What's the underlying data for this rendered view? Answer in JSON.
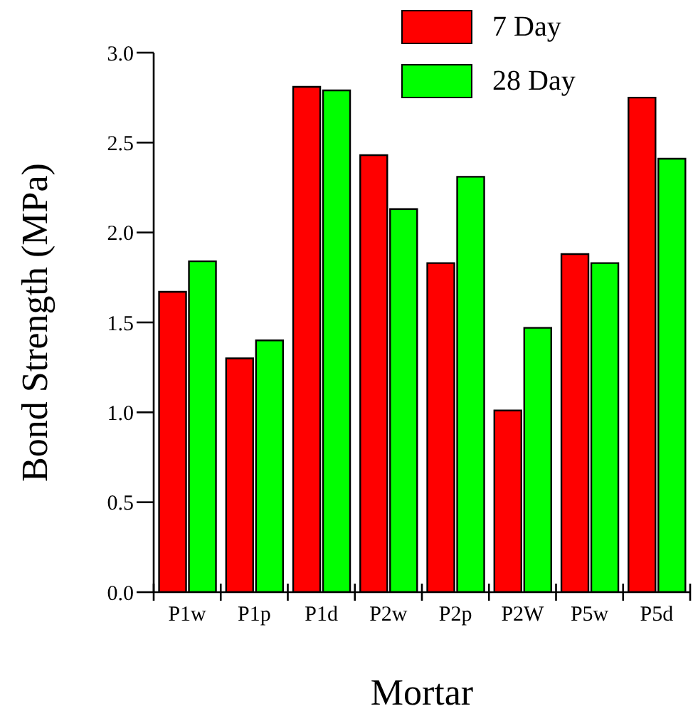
{
  "chart_data": {
    "type": "bar",
    "xlabel": "Mortar",
    "ylabel": "Bond Strength (MPa)",
    "categories": [
      "P1w",
      "P1p",
      "P1d",
      "P2w",
      "P2p",
      "P2W",
      "P5w",
      "P5d"
    ],
    "series": [
      {
        "name": "7 Day",
        "color": "#ff0000",
        "values": [
          1.67,
          1.3,
          2.81,
          2.43,
          1.83,
          1.01,
          1.88,
          2.75
        ]
      },
      {
        "name": "28 Day",
        "color": "#00ff00",
        "values": [
          1.84,
          1.4,
          2.79,
          2.13,
          2.31,
          1.47,
          1.83,
          2.41
        ]
      }
    ],
    "ylim": [
      0,
      3
    ],
    "yticks": [
      {
        "value": 0,
        "label": "0.0"
      },
      {
        "value": 0.5,
        "label": "0.5"
      },
      {
        "value": 1,
        "label": "1.0"
      },
      {
        "value": 1.5,
        "label": "1.5"
      },
      {
        "value": 2,
        "label": "2.0"
      },
      {
        "value": 2.5,
        "label": "2.5"
      },
      {
        "value": 3,
        "label": "3.0"
      }
    ],
    "grid": false,
    "legend": "top right"
  }
}
